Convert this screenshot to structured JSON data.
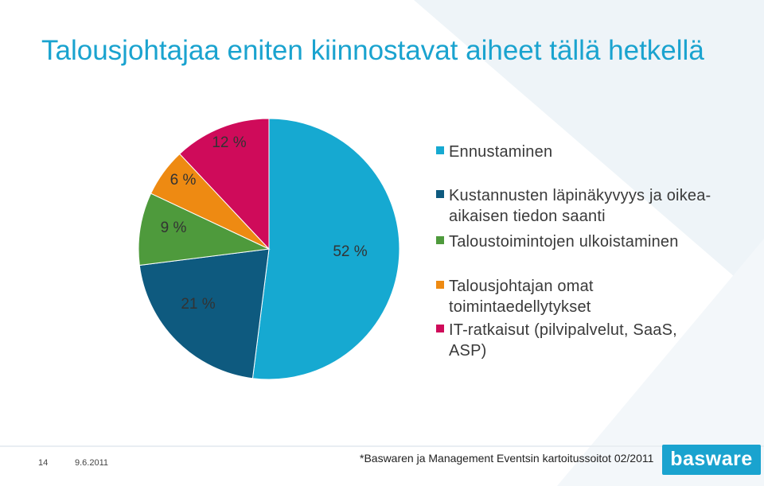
{
  "slide": {
    "title": "Talousjohtajaa eniten kiinnostavat aiheet tällä hetkellä",
    "page_number": "14",
    "date": "9.6.2011",
    "source": "*Baswaren ja Management Eventsin kartoitussoitot 02/2011",
    "logo_text": "basware"
  },
  "chart_data": {
    "type": "pie",
    "title": "",
    "legend_position": "right",
    "start_angle_deg": 0,
    "direction": "clockwise",
    "slices": [
      {
        "name": "Ennustaminen",
        "value": 52,
        "label": "52 %",
        "color": "#16a9d1"
      },
      {
        "name": "Kustannusten läpinäkyvyys ja oikea-aikaisen tiedon saanti",
        "value": 21,
        "label": "21 %",
        "color": "#0e5a7f"
      },
      {
        "name": "Taloustoimintojen ulkoistaminen",
        "value": 9,
        "label": "9 %",
        "color": "#4e9a3c"
      },
      {
        "name": "Talousjohtajan omat toimintaedellytykset",
        "value": 6,
        "label": "6 %",
        "color": "#ee8a12"
      },
      {
        "name": "IT-ratkaisut (pilvipalvelut, SaaS, ASP)",
        "value": 12,
        "label": "12 %",
        "color": "#cf0b5a"
      }
    ]
  }
}
